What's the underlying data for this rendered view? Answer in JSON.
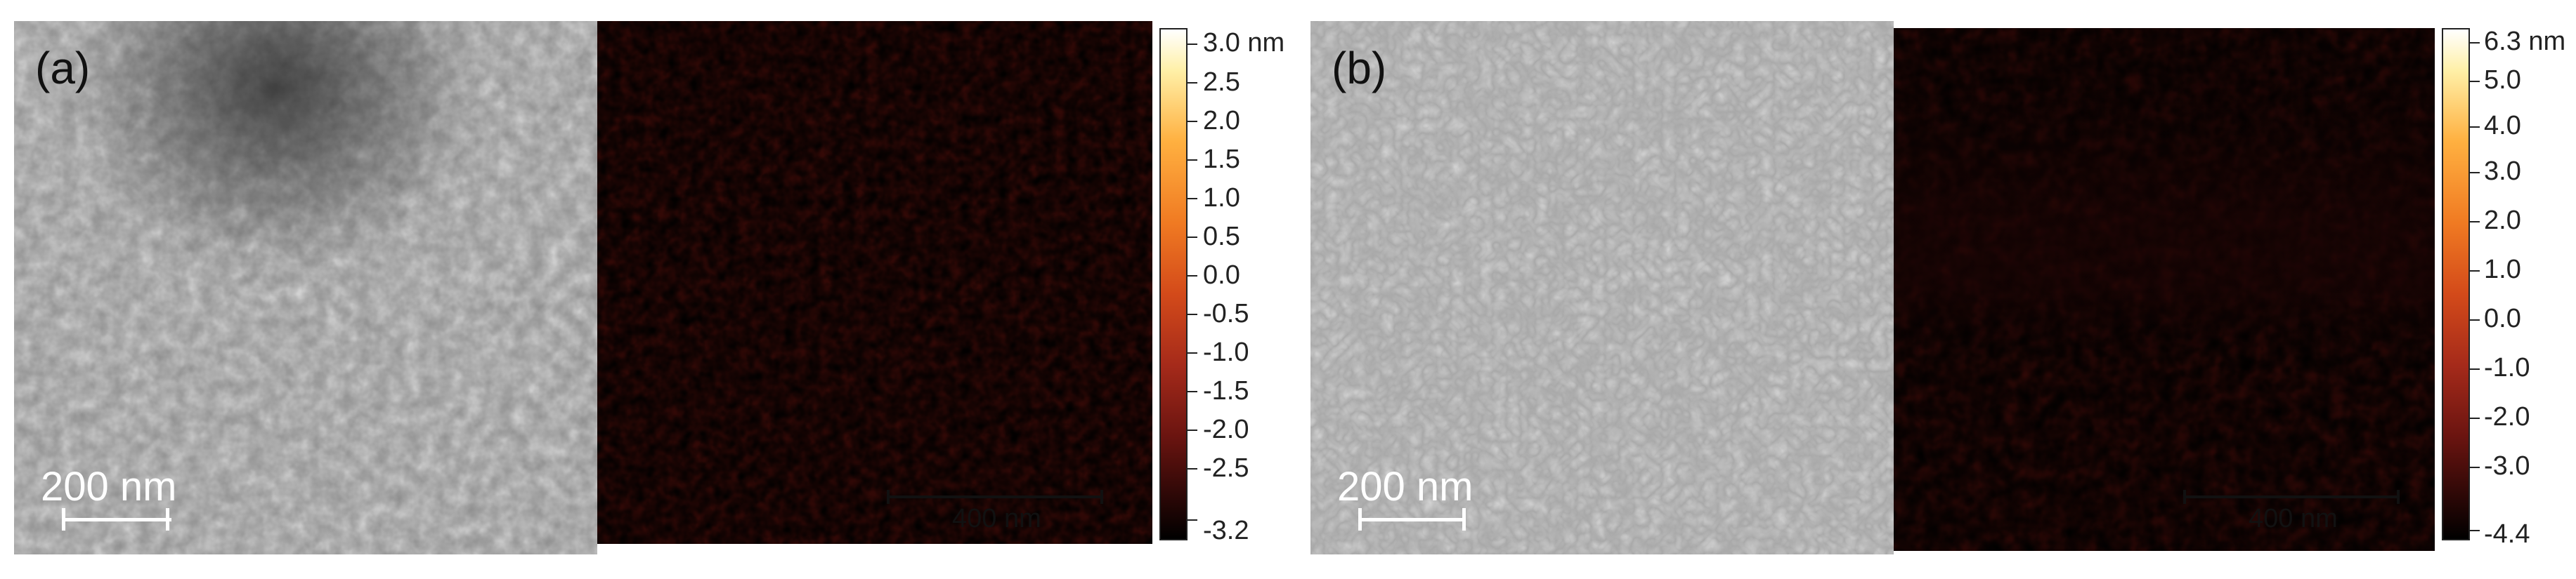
{
  "figure": {
    "panels": [
      {
        "id": "a",
        "panel_label": "(a)",
        "sem_scale_label": "200 nm",
        "afm_scale_label": "400 nm",
        "colorbar_unit": "nm",
        "colorbar_ticks": [
          "3.0 nm",
          "2.5",
          "2.0",
          "1.5",
          "1.0",
          "0.5",
          "0.0",
          "-0.5",
          "-1.0",
          "-1.5",
          "-2.0",
          "-2.5",
          "-3.2"
        ]
      },
      {
        "id": "b",
        "panel_label": "(b)",
        "sem_scale_label": "200 nm",
        "afm_scale_label": "400 nm",
        "colorbar_unit": "nm",
        "colorbar_ticks": [
          "6.3 nm",
          "5.0",
          "4.0",
          "3.0",
          "2.0",
          "1.0",
          "0.0",
          "-1.0",
          "-2.0",
          "-3.0",
          "-4.4"
        ]
      }
    ],
    "colors": {
      "afm_dark": "#1a0606",
      "afm_mid": "#c0392b",
      "afm_light": "#ff9a2e",
      "afm_white": "#fffbe6",
      "sem_gray": "#9a9a9a"
    }
  }
}
